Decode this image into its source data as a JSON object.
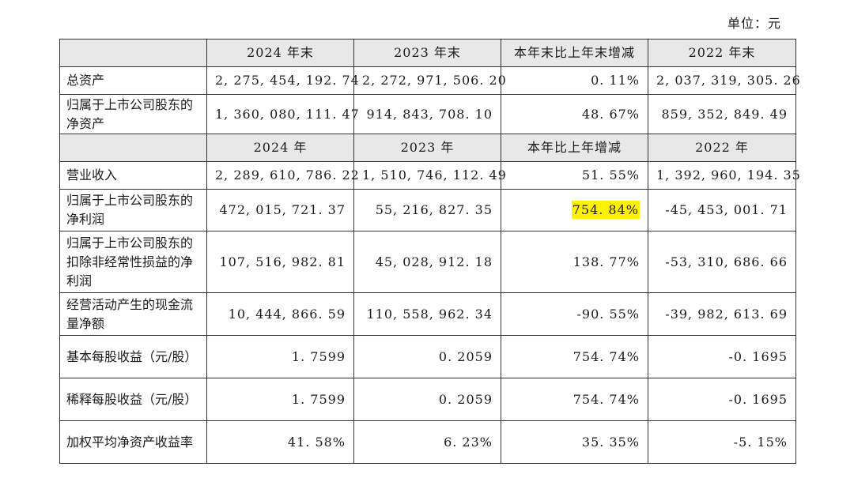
{
  "unit": "单位：元",
  "header_end": [
    "",
    "2024 年末",
    "2023 年末",
    "本年末比上年末增减",
    "2022 年末"
  ],
  "rows_end": [
    {
      "label": "总资产",
      "v2024": "2, 275, 454, 192. 74",
      "v2023": "2, 272, 971, 506. 20",
      "change": "0. 11%",
      "v2022": "2, 037, 319, 305. 26"
    },
    {
      "label": "归属于上市公司股东的净资产",
      "v2024": "1, 360, 080, 111. 47",
      "v2023": "914, 843, 708. 10",
      "change": "48. 67%",
      "v2022": "859, 352, 849. 49"
    }
  ],
  "header_year": [
    "",
    "2024 年",
    "2023 年",
    "本年比上年增减",
    "2022 年"
  ],
  "rows_year": [
    {
      "label": "营业收入",
      "v2024": "2, 289, 610, 786. 22",
      "v2023": "1, 510, 746, 112. 49",
      "change": "51. 55%",
      "v2022": "1, 392, 960, 194. 35"
    },
    {
      "label": "归属于上市公司股东的净利润",
      "v2024": "472, 015, 721. 37",
      "v2023": "55, 216, 827. 35",
      "change": "754. 84%",
      "v2022": "-45, 453, 001. 71"
    },
    {
      "label": "归属于上市公司股东的扣除非经常性损益的净利润",
      "v2024": "107, 516, 982. 81",
      "v2023": "45, 028, 912. 18",
      "change": "138. 77%",
      "v2022": "-53, 310, 686. 66"
    },
    {
      "label": "经营活动产生的现金流量净额",
      "v2024": "10, 444, 866. 59",
      "v2023": "110, 558, 962. 34",
      "change": "-90. 55%",
      "v2022": "-39, 982, 613. 69"
    },
    {
      "label": "基本每股收益（元/股）",
      "v2024": "1. 7599",
      "v2023": "0. 2059",
      "change": "754. 74%",
      "v2022": "-0. 1695"
    },
    {
      "label": "稀释每股收益（元/股）",
      "v2024": "1. 7599",
      "v2023": "0. 2059",
      "change": "754. 74%",
      "v2022": "-0. 1695"
    },
    {
      "label": "加权平均净资产收益率",
      "v2024": "41. 58%",
      "v2023": "6. 23%",
      "change": "35. 35%",
      "v2022": "-5. 15%"
    }
  ],
  "highlight_color": "#fff200"
}
